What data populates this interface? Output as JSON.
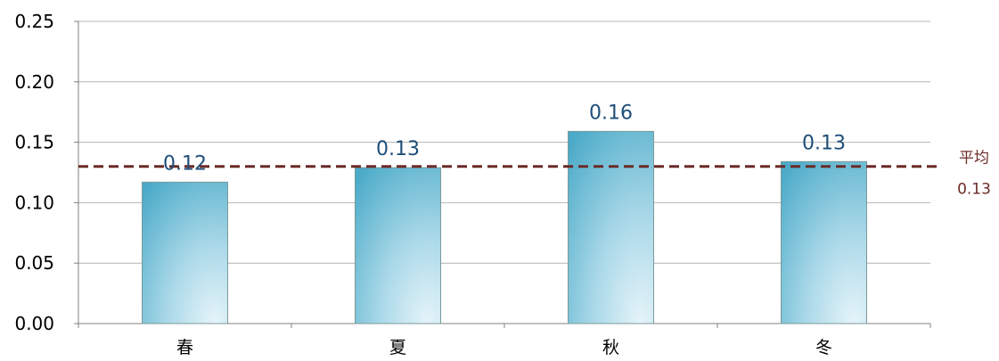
{
  "chart_data": {
    "type": "bar",
    "title": "",
    "xlabel": "",
    "ylabel": "",
    "categories": [
      "春",
      "夏",
      "秋",
      "冬"
    ],
    "values": [
      0.117,
      0.129,
      0.159,
      0.134
    ],
    "data_labels": [
      "0.12",
      "0.13",
      "0.16",
      "0.13"
    ],
    "ylim": [
      0,
      0.25
    ],
    "y_ticks": [
      0.0,
      0.05,
      0.1,
      0.15,
      0.2,
      0.25
    ],
    "y_tick_labels": [
      "0.00",
      "0.05",
      "0.10",
      "0.15",
      "0.20",
      "0.25"
    ],
    "grid": true,
    "reference_line": {
      "value": 0.13,
      "label": "平均",
      "value_label": "0.13",
      "style": "dashed"
    },
    "colors": {
      "bar_top": "#4aaac8",
      "bar_light": "#e6f4f9",
      "bar_edge": "#7a9a9a",
      "data_label": "#1f4e79",
      "reference_line": "#6b2a26",
      "grid": "#b4b4b4",
      "axis": "#808080"
    }
  }
}
